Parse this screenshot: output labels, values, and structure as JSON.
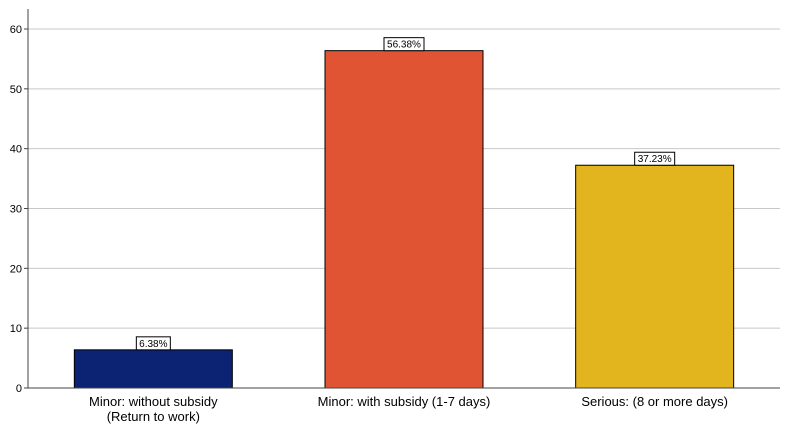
{
  "chart_data": {
    "type": "bar",
    "categories": [
      [
        "Minor: without subsidy",
        "(Return to work)"
      ],
      [
        "Minor: with subsidy (1-7 days)"
      ],
      [
        "Serious: (8 or more days)"
      ]
    ],
    "values": [
      6.38,
      56.38,
      37.23
    ],
    "data_labels": [
      "6.38%",
      "56.38%",
      "37.23%"
    ],
    "colors": [
      "#0c2272",
      "#e15433",
      "#e2b41d"
    ],
    "ylim": [
      0,
      60
    ],
    "yticks": [
      0,
      10,
      20,
      30,
      40,
      50,
      60
    ],
    "grid": true,
    "title": "",
    "xlabel": "",
    "ylabel": ""
  }
}
